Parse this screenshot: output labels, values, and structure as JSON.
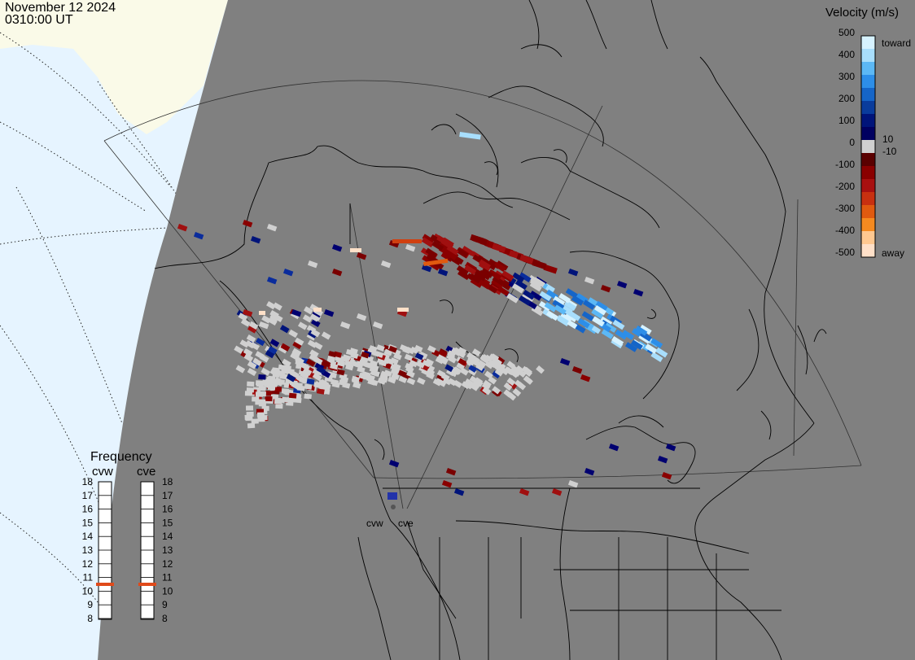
{
  "header": {
    "date": "November 12 2024",
    "time": "0310:00 UT"
  },
  "velocity_scale": {
    "title": "Velocity (m/s)",
    "ticks": [
      "500",
      "400",
      "300",
      "200",
      "100",
      "10",
      "0",
      "-10",
      "-100",
      "-200",
      "-300",
      "-400",
      "-500"
    ],
    "toward_label": "toward",
    "away_label": "away",
    "colors": [
      "#d6f2ff",
      "#a8defc",
      "#5cb8f5",
      "#2d8ee8",
      "#1565c8",
      "#0a3c9c",
      "#00147a",
      "#000060",
      "#d0d0d0",
      "#5a0000",
      "#8a0000",
      "#a81010",
      "#c83010",
      "#e05a10",
      "#f58a20",
      "#ffc890",
      "#ffe0c8"
    ]
  },
  "frequency": {
    "title": "Frequency",
    "radars": [
      {
        "name": "cvw",
        "value": 10.5
      },
      {
        "name": "cve",
        "value": 10.5
      }
    ],
    "levels": [
      "18",
      "17",
      "16",
      "15",
      "14",
      "13",
      "12",
      "11",
      "10",
      "9",
      "8"
    ],
    "marker_color": "#e04a1a"
  },
  "map": {
    "colors": {
      "ocean_day": "#e6f4ff",
      "land_day": "#fafae8",
      "night": "#808080",
      "coast": "#000000",
      "grid": "#303030",
      "ground_scatter": "#d0d0d0"
    },
    "radar_sites": [
      {
        "name": "cvw"
      },
      {
        "name": "cve"
      }
    ]
  }
}
